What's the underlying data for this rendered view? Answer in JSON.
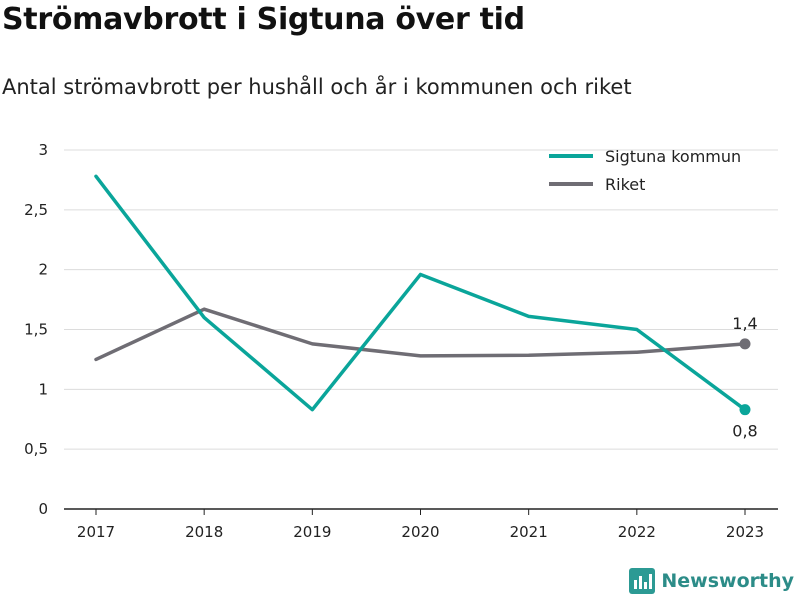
{
  "header": {
    "title": "Strömavbrott i Sigtuna över tid",
    "subtitle": "Antal strömavbrott per hushåll och år i kommunen och riket"
  },
  "brand": {
    "name": "Newsworthy",
    "color": "#2c9a94",
    "icon": "newsworthy-logo-icon"
  },
  "chart_data": {
    "type": "line",
    "x": [
      "2017",
      "2018",
      "2019",
      "2020",
      "2021",
      "2022",
      "2023"
    ],
    "ylim": [
      0,
      3
    ],
    "yticks": [
      0,
      0.5,
      1,
      1.5,
      2,
      2.5,
      3
    ],
    "ytick_labels": [
      "0",
      "0,5",
      "1",
      "1,5",
      "2",
      "2,5",
      "3"
    ],
    "grid": true,
    "legend_position": "top-right",
    "series": [
      {
        "name": "Sigtuna kommun",
        "color": "#0aa59a",
        "values": [
          2.78,
          1.6,
          0.83,
          1.96,
          1.61,
          1.5,
          0.83
        ],
        "end_label": "0,8"
      },
      {
        "name": "Riket",
        "color": "#6f6d74",
        "values": [
          1.25,
          1.67,
          1.38,
          1.28,
          1.285,
          1.31,
          1.38
        ],
        "end_label": "1,4"
      }
    ]
  }
}
